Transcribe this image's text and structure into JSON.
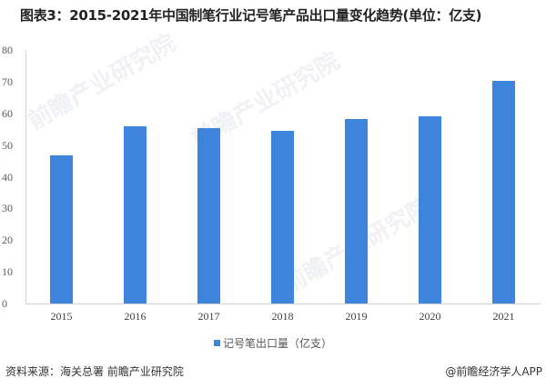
{
  "title": "图表3：2015-2021年中国制笔行业记号笔产品出口量变化趋势(单位：亿支)",
  "chart_data": {
    "type": "bar",
    "title": "图表3：2015-2021年中国制笔行业记号笔产品出口量变化趋势(单位：亿支)",
    "categories": [
      "2015",
      "2016",
      "2017",
      "2018",
      "2019",
      "2020",
      "2021"
    ],
    "series": [
      {
        "name": "记号笔出口量（亿支）",
        "values": [
          46.9,
          56.0,
          55.4,
          54.8,
          58.3,
          59.4,
          70.4
        ],
        "color": "#3e83dc"
      }
    ],
    "xlabel": "",
    "ylabel": "",
    "ylim": [
      0,
      80
    ],
    "yticks": [
      "0",
      "10",
      "20",
      "30",
      "40",
      "50",
      "60",
      "70",
      "80"
    ],
    "grid": false,
    "legend_position": "bottom"
  },
  "legend": {
    "label": "记号笔出口量（亿支）"
  },
  "footer": {
    "source": "资料来源：海关总署 前瞻产业研究院",
    "credit": "@前瞻经济学人APP"
  },
  "watermarks": [
    "前瞻产业研究院",
    "前瞻产业研究院",
    "前瞻产业研究院"
  ]
}
